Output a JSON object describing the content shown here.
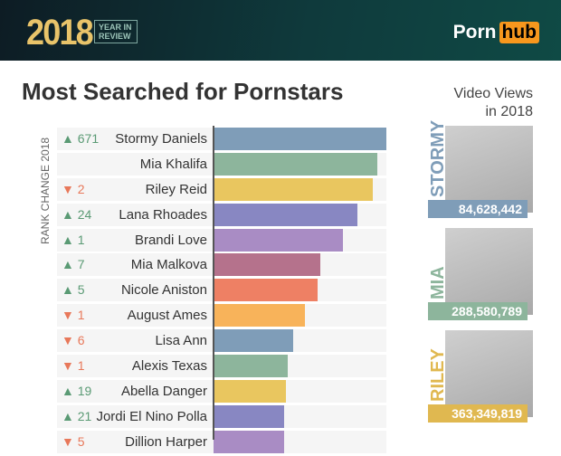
{
  "header": {
    "year": "2018",
    "year_in_review": "YEAR IN REVIEW",
    "logo_porn": "Porn",
    "logo_hub": "hub"
  },
  "title": "Most Searched for Pornstars",
  "video_views_title": "Video Views in 2018",
  "chart_data": {
    "type": "bar",
    "orientation": "horizontal",
    "title": "Most Searched for Pornstars",
    "ylabel": "RANK CHANGE 2018",
    "categories": [
      "Stormy Daniels",
      "Mia Khalifa",
      "Riley Reid",
      "Lana Rhoades",
      "Brandi Love",
      "Mia Malkova",
      "Nicole Aniston",
      "August Ames",
      "Lisa Ann",
      "Alexis Texas",
      "Abella Danger",
      "Jordi El Nino Polla",
      "Dillion Harper"
    ],
    "rank_change": [
      {
        "dir": "up",
        "val": "671"
      },
      {
        "dir": "",
        "val": ""
      },
      {
        "dir": "down",
        "val": "2"
      },
      {
        "dir": "up",
        "val": "24"
      },
      {
        "dir": "up",
        "val": "1"
      },
      {
        "dir": "up",
        "val": "7"
      },
      {
        "dir": "up",
        "val": "5"
      },
      {
        "dir": "down",
        "val": "1"
      },
      {
        "dir": "down",
        "val": "6"
      },
      {
        "dir": "down",
        "val": "1"
      },
      {
        "dir": "up",
        "val": "19"
      },
      {
        "dir": "up",
        "val": "21"
      },
      {
        "dir": "down",
        "val": "5"
      }
    ],
    "values": [
      100,
      95,
      92,
      83,
      75,
      62,
      60,
      53,
      46,
      43,
      42,
      41,
      41
    ],
    "colors": [
      "#7f9db8",
      "#8db59c",
      "#e9c65f",
      "#8887c2",
      "#a98cc4",
      "#b5728c",
      "#ee8064",
      "#f8b35a",
      "#7f9db8",
      "#8db59c",
      "#e9c65f",
      "#8887c2",
      "#a98cc4"
    ],
    "grid": false
  },
  "cards": [
    {
      "name": "STORMY",
      "views": "84,628,442",
      "color": "#7f9db8"
    },
    {
      "name": "MIA",
      "views": "288,580,789",
      "color": "#8db59c"
    },
    {
      "name": "RILEY",
      "views": "363,349,819",
      "color": "#e0b850"
    }
  ]
}
